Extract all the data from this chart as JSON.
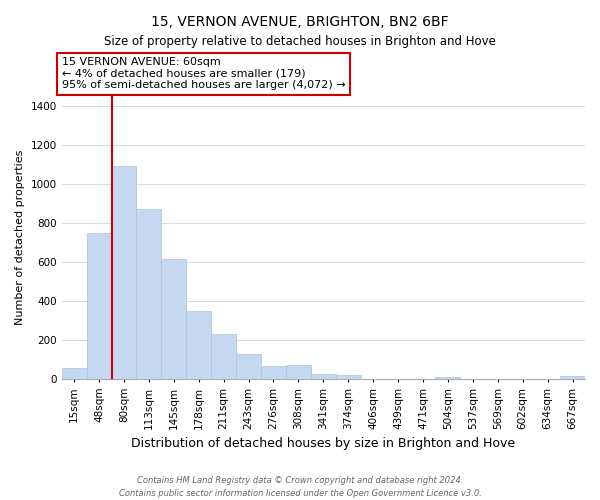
{
  "title": "15, VERNON AVENUE, BRIGHTON, BN2 6BF",
  "subtitle": "Size of property relative to detached houses in Brighton and Hove",
  "xlabel": "Distribution of detached houses by size in Brighton and Hove",
  "ylabel": "Number of detached properties",
  "bar_labels": [
    "15sqm",
    "48sqm",
    "80sqm",
    "113sqm",
    "145sqm",
    "178sqm",
    "211sqm",
    "243sqm",
    "276sqm",
    "308sqm",
    "341sqm",
    "374sqm",
    "406sqm",
    "439sqm",
    "471sqm",
    "504sqm",
    "537sqm",
    "569sqm",
    "602sqm",
    "634sqm",
    "667sqm"
  ],
  "bar_values": [
    55,
    750,
    1090,
    870,
    615,
    348,
    228,
    130,
    68,
    70,
    25,
    18,
    0,
    0,
    0,
    12,
    0,
    0,
    0,
    0,
    13
  ],
  "bar_color": "#c5d8f0",
  "bar_edgecolor": "#a8c4e0",
  "vline_x": 1.5,
  "vline_color": "#cc0000",
  "ylim": [
    0,
    1450
  ],
  "yticks": [
    0,
    200,
    400,
    600,
    800,
    1000,
    1200,
    1400
  ],
  "annotation_title": "15 VERNON AVENUE: 60sqm",
  "annotation_line1": "← 4% of detached houses are smaller (179)",
  "annotation_line2": "95% of semi-detached houses are larger (4,072) →",
  "annotation_box_color": "#cc0000",
  "footnote1": "Contains HM Land Registry data © Crown copyright and database right 2024.",
  "footnote2": "Contains public sector information licensed under the Open Government Licence v3.0.",
  "grid_color": "#d0dde8",
  "title_fontsize": 10,
  "subtitle_fontsize": 8.5,
  "ylabel_fontsize": 8,
  "xlabel_fontsize": 9,
  "tick_fontsize": 7.5,
  "annotation_fontsize": 8,
  "footnote_fontsize": 6
}
